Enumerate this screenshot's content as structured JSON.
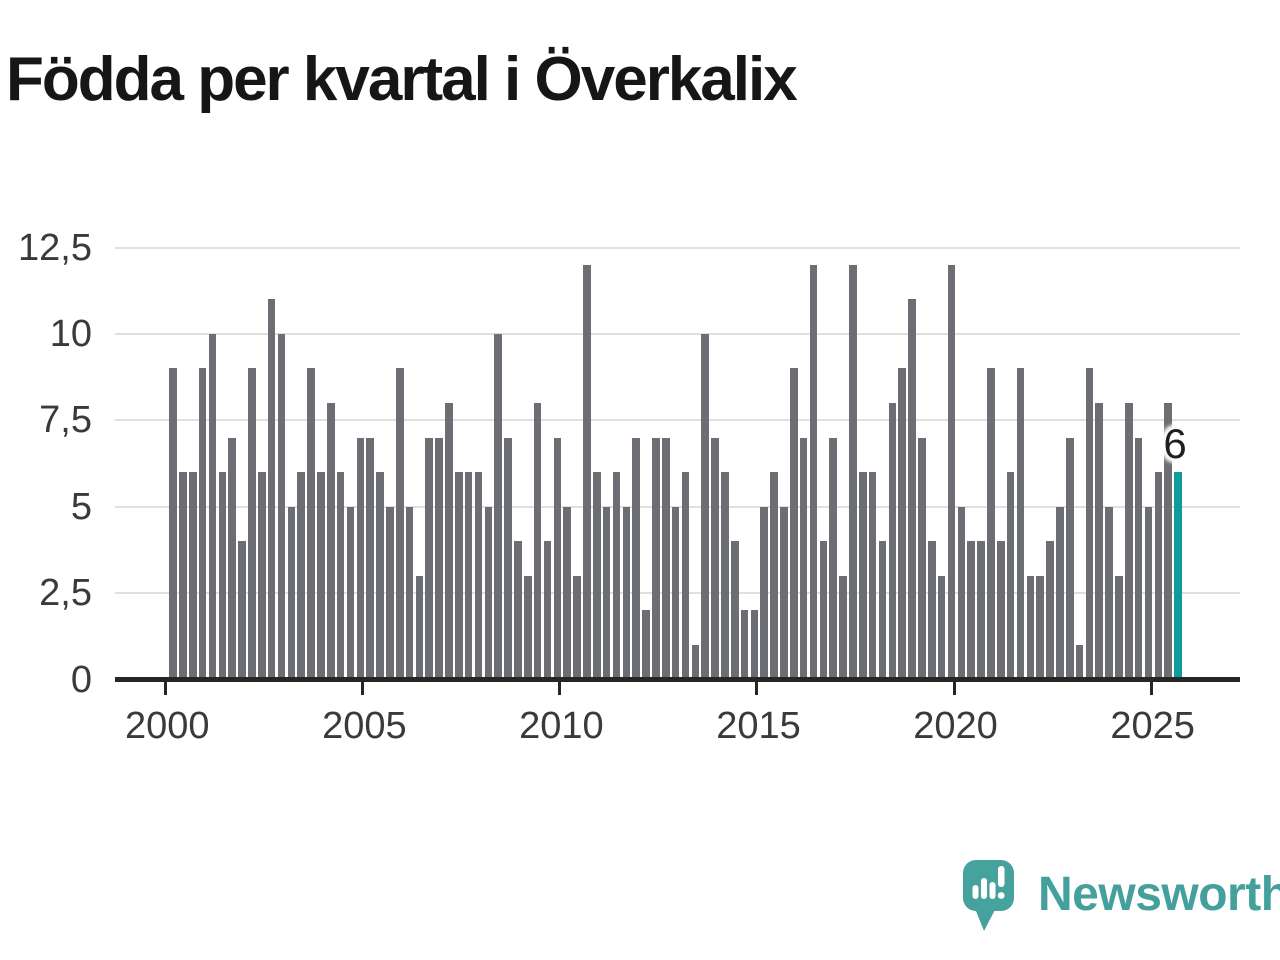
{
  "title": "Födda per kvartal i Överkalix",
  "annotation": {
    "label": "6"
  },
  "chart_data": {
    "type": "bar",
    "title": "Födda per kvartal i Överkalix",
    "frequency": "quarterly",
    "x_start": "2000-Q1",
    "x_end": "2025-Q3",
    "series": [
      {
        "name": "Födda per kvartal",
        "values": [
          9,
          6,
          6,
          9,
          10,
          6,
          7,
          4,
          9,
          6,
          11,
          10,
          5,
          6,
          9,
          6,
          8,
          6,
          5,
          7,
          7,
          6,
          5,
          9,
          5,
          3,
          7,
          7,
          8,
          6,
          6,
          6,
          5,
          10,
          7,
          4,
          3,
          8,
          4,
          7,
          5,
          3,
          12,
          6,
          5,
          6,
          5,
          7,
          2,
          7,
          7,
          5,
          6,
          1,
          10,
          7,
          6,
          4,
          2,
          2,
          5,
          6,
          5,
          9,
          7,
          12,
          4,
          7,
          3,
          12,
          6,
          6,
          4,
          8,
          9,
          11,
          7,
          4,
          3,
          12,
          5,
          4,
          4,
          9,
          4,
          6,
          9,
          3,
          3,
          4,
          5,
          7,
          1,
          9,
          8,
          5,
          3,
          8,
          7,
          5,
          6,
          8,
          6
        ]
      }
    ],
    "highlight": {
      "index": 102,
      "quarter": "2025-Q3",
      "value": 6,
      "label": "6"
    },
    "ylim": [
      0,
      12.5
    ],
    "y_ticks": [
      "0",
      "2,5",
      "5",
      "7,5",
      "10",
      "12,5"
    ],
    "y_tick_values": [
      0,
      2.5,
      5,
      7.5,
      10,
      12.5
    ],
    "x_tick_labels": [
      "2000",
      "2005",
      "2010",
      "2015",
      "2020",
      "2025"
    ],
    "x_tick_indices": [
      0,
      20,
      40,
      60,
      80,
      100
    ],
    "grid": true,
    "legend": "none",
    "bar_color": "#6d6d74",
    "highlight_color": "#0d9b9b",
    "gridline_color": "#e0e0e0",
    "axis_color": "#262626"
  },
  "logo": {
    "text": "Newsworthy",
    "icon": "newsworthy-speech-bubble-chart-icon",
    "bubble_color": "#46a29d",
    "text_color": "#44a09c"
  }
}
